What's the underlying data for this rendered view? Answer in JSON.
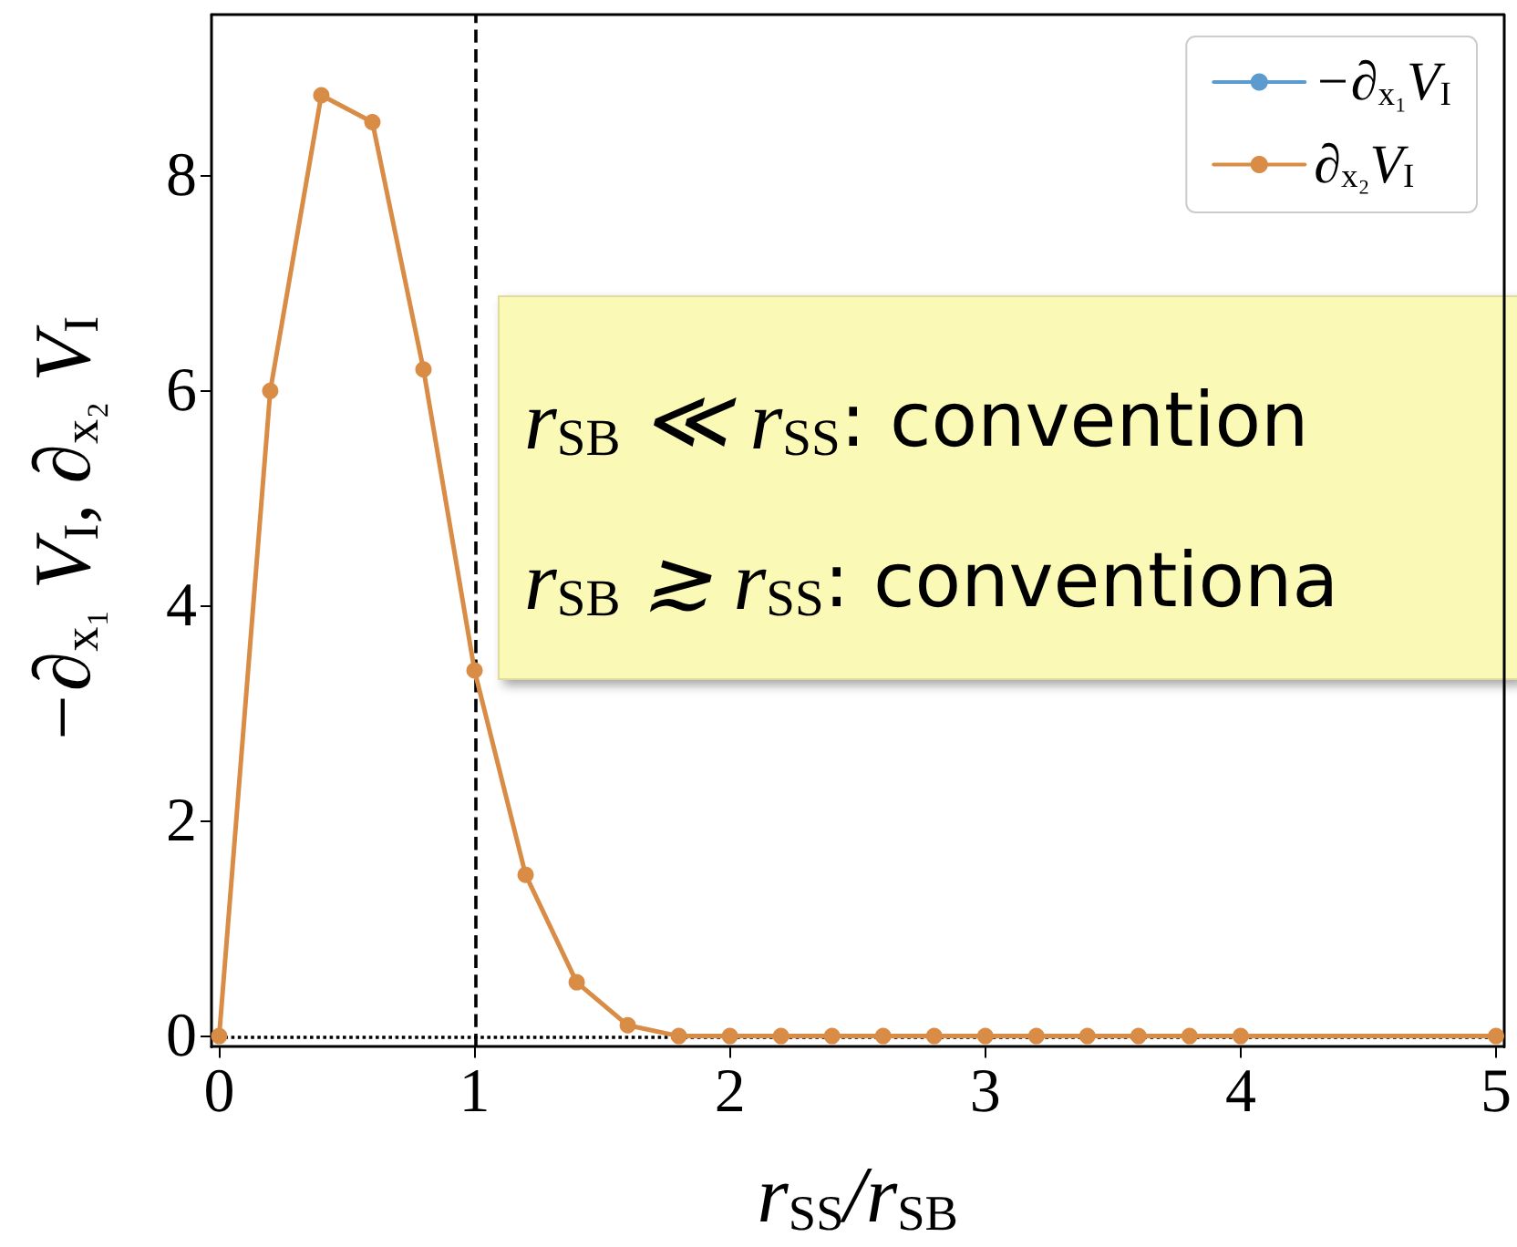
{
  "chart_data": {
    "type": "line",
    "xlabel": "r$_{SS}$/r$_{SB}$",
    "ylabel": "−∂$_{x₁}$ V$_{I}$, ∂$_{x₂}$ V$_{I}$",
    "x": [
      0,
      0.2,
      0.4,
      0.6,
      0.8,
      1.0,
      1.2,
      1.4,
      1.6,
      1.8,
      2.0,
      2.2,
      2.4,
      2.6,
      2.8,
      3.0,
      3.2,
      3.4,
      3.6,
      3.8,
      4.0,
      5.0
    ],
    "series": [
      {
        "name": "−∂$_{x₁}$V$_{I}$",
        "color": "#5b9bd0",
        "values": [
          null,
          null,
          null,
          null,
          null,
          null,
          null,
          null,
          null,
          null,
          null,
          null,
          null,
          null,
          null,
          null,
          null,
          null,
          null,
          null,
          null,
          null
        ]
      },
      {
        "name": "∂$_{x₂}$V$_{I}$",
        "color": "#d98c45",
        "values": [
          0,
          6.0,
          8.75,
          8.5,
          6.2,
          3.4,
          1.5,
          0.5,
          0.1,
          0,
          0,
          0,
          0,
          0,
          0,
          0,
          0,
          0,
          0,
          0,
          0,
          0
        ]
      }
    ],
    "xlim": [
      -0.03,
      5.03
    ],
    "xticks": [
      0,
      1,
      2,
      3,
      4,
      5
    ],
    "ylim": [
      -0.1,
      9.5
    ],
    "yticks": [
      0,
      2,
      4,
      6,
      8
    ],
    "ref_lines": [
      {
        "axis": "x",
        "value": 1,
        "color": "#000000",
        "line_style": "dashed"
      },
      {
        "axis": "y",
        "value": 0,
        "color": "#000000",
        "line_style": "dotted"
      }
    ],
    "annotations": [
      "r$_{SB}$ ≪ r$_{SS}$: convention",
      "r$_{SB}$ ≳ r$_{SS}$: conventiona"
    ],
    "legend": "top right",
    "grid": false,
    "marker": "circle",
    "line_style": "solid"
  }
}
